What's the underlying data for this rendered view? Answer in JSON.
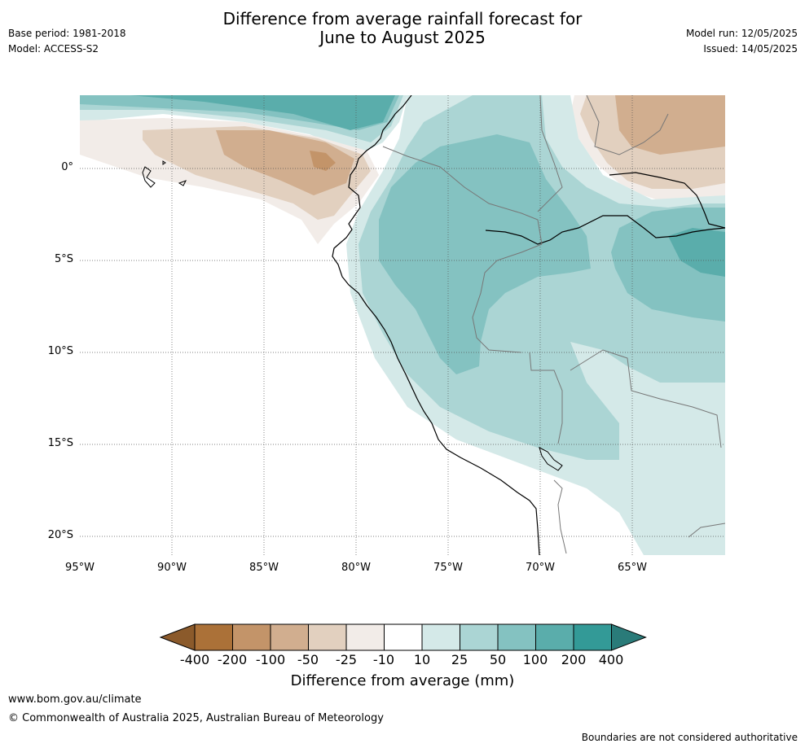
{
  "title": [
    "Difference from average rainfall forecast for",
    "June to August 2025"
  ],
  "meta_left": {
    "base_period": "Base period: 1981-2018",
    "model": "Model: ACCESS-S2"
  },
  "meta_right": {
    "model_run": "Model run: 12/05/2025",
    "issued": "Issued: 14/05/2025"
  },
  "map": {
    "lat_labels": [
      "0°",
      "5°S",
      "10°S",
      "15°S",
      "20°S"
    ],
    "lon_labels": [
      "95°W",
      "90°W",
      "85°W",
      "80°W",
      "75°W",
      "70°W",
      "65°W"
    ],
    "lat_values": [
      0,
      -5,
      -10,
      -15,
      -20
    ],
    "lon_values": [
      -95,
      -90,
      -85,
      -80,
      -75,
      -70,
      -65
    ],
    "extent": {
      "lon_min": -95,
      "lon_max": -60,
      "lat_min": -21,
      "lat_max": 4
    }
  },
  "colorbar": {
    "title": "Difference from average (mm)",
    "labels": [
      "-400",
      "-200",
      "-100",
      "-50",
      "-25",
      "-10",
      "10",
      "25",
      "50",
      "100",
      "200",
      "400"
    ],
    "colors": [
      "#8b5a2b",
      "#ab7138",
      "#c39469",
      "#d1ae8f",
      "#e2d0bf",
      "#f2ece8",
      "#ffffff",
      "#d4e9e8",
      "#abd5d4",
      "#84c2c1",
      "#5aadab",
      "#339a97",
      "#2a7b79"
    ]
  },
  "footer": {
    "url": "www.bom.gov.au/climate",
    "copyright": "© Commonwealth of Australia 2025, Australian Bureau of Meteorology",
    "disclaimer": "Boundaries are not considered authoritative"
  }
}
